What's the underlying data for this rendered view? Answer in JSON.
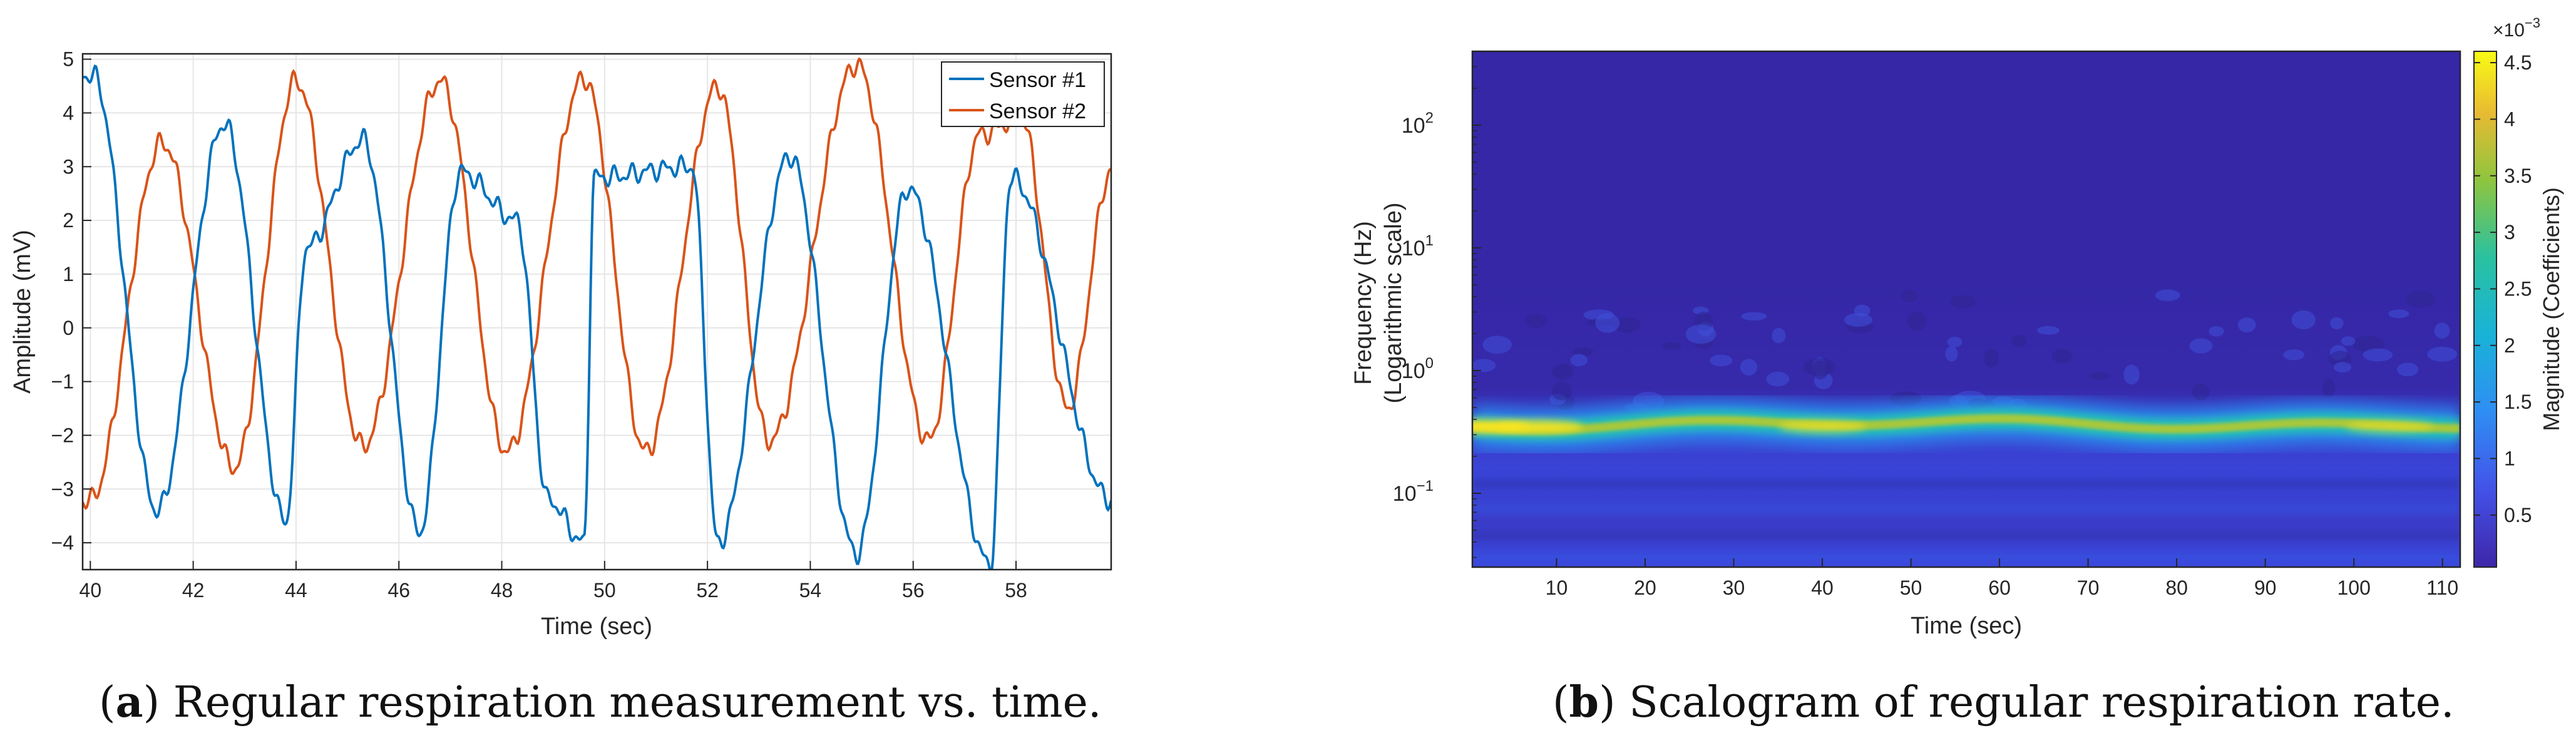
{
  "captions": {
    "a": {
      "label": "a",
      "text": "Regular respiration measurement vs. time."
    },
    "b": {
      "label": "b",
      "text": "Scalogram of regular respiration rate."
    }
  },
  "colors": {
    "sensor1": "#0072BD",
    "sensor2": "#D95319",
    "grid": "#e6e6e6",
    "axis": "#262626"
  },
  "chart_data": [
    {
      "type": "line",
      "xlabel": "Time (sec)",
      "ylabel": "Amplitude (mV)",
      "xlim": [
        39.85,
        59.85
      ],
      "ylim": [
        -4.5,
        5.1
      ],
      "xticks": [
        40,
        42,
        44,
        46,
        48,
        50,
        52,
        54,
        56,
        58
      ],
      "yticks": [
        -4,
        -3,
        -2,
        -1,
        0,
        1,
        2,
        3,
        4,
        5
      ],
      "grid": true,
      "legend_position": "top-right",
      "series": [
        {
          "name": "Sensor #1",
          "color": "#0072BD",
          "peaks": [
            [
              40.05,
              4.7
            ],
            [
              42.6,
              3.8
            ],
            [
              44.2,
              1.5
            ],
            [
              45.3,
              3.5
            ],
            [
              47.2,
              2.9
            ],
            [
              48.3,
              2.0
            ],
            [
              49.8,
              2.8
            ],
            [
              51.7,
              3.0
            ],
            [
              53.6,
              3.2
            ],
            [
              55.9,
              2.6
            ],
            [
              57.9,
              2.8
            ]
          ],
          "troughs": [
            [
              41.3,
              -3.4
            ],
            [
              43.8,
              -3.6
            ],
            [
              46.4,
              -3.8
            ],
            [
              48.9,
              -3.2
            ],
            [
              49.6,
              -4.0
            ],
            [
              52.2,
              -4.0
            ],
            [
              54.9,
              -4.2
            ],
            [
              57.5,
              -4.4
            ],
            [
              59.85,
              -3.2
            ]
          ]
        },
        {
          "name": "Sensor #2",
          "color": "#D95319",
          "peaks": [
            [
              41.4,
              3.45
            ],
            [
              44.0,
              4.6
            ],
            [
              46.8,
              4.6
            ],
            [
              49.6,
              4.65
            ],
            [
              52.2,
              4.5
            ],
            [
              54.9,
              4.9
            ],
            [
              57.3,
              3.6
            ],
            [
              58.1,
              3.9
            ],
            [
              59.85,
              2.9
            ]
          ],
          "troughs": [
            [
              40.0,
              -3.2
            ],
            [
              42.8,
              -2.6
            ],
            [
              45.3,
              -2.2
            ],
            [
              48.1,
              -2.3
            ],
            [
              50.8,
              -2.3
            ],
            [
              53.2,
              -2.1
            ],
            [
              56.3,
              -2.1
            ],
            [
              59.0,
              -1.5
            ]
          ]
        }
      ]
    },
    {
      "type": "heatmap",
      "xlabel": "Time (sec)",
      "ylabel": "Frequency (Hz)",
      "ylabel2": "(Logarithmic scale)",
      "xlim": [
        0.5,
        112
      ],
      "xticks": [
        10,
        20,
        30,
        40,
        50,
        60,
        70,
        80,
        90,
        100,
        110
      ],
      "yscale": "log",
      "ylim": [
        0.025,
        400
      ],
      "yticks": [
        {
          "value": 0.1,
          "base": "10",
          "exp": "−1"
        },
        {
          "value": 1,
          "base": "10",
          "exp": "0"
        },
        {
          "value": 10,
          "base": "10",
          "exp": "1"
        },
        {
          "value": 100,
          "base": "10",
          "exp": "2"
        }
      ],
      "dominant_frequency_hz": 0.35,
      "peak_magnitude": 0.0045,
      "colorbar": {
        "label": "Magnitude (Coefficients)",
        "exponent_base": "×10",
        "exponent": "−3",
        "range": [
          0.04,
          4.6
        ],
        "ticks": [
          0.5,
          1,
          1.5,
          2,
          2.5,
          3,
          3.5,
          4,
          4.5
        ],
        "tick_labels": [
          "0.5",
          "1",
          "1.5",
          "2",
          "2.5",
          "3",
          "3.5",
          "4",
          "4.5"
        ]
      }
    }
  ]
}
